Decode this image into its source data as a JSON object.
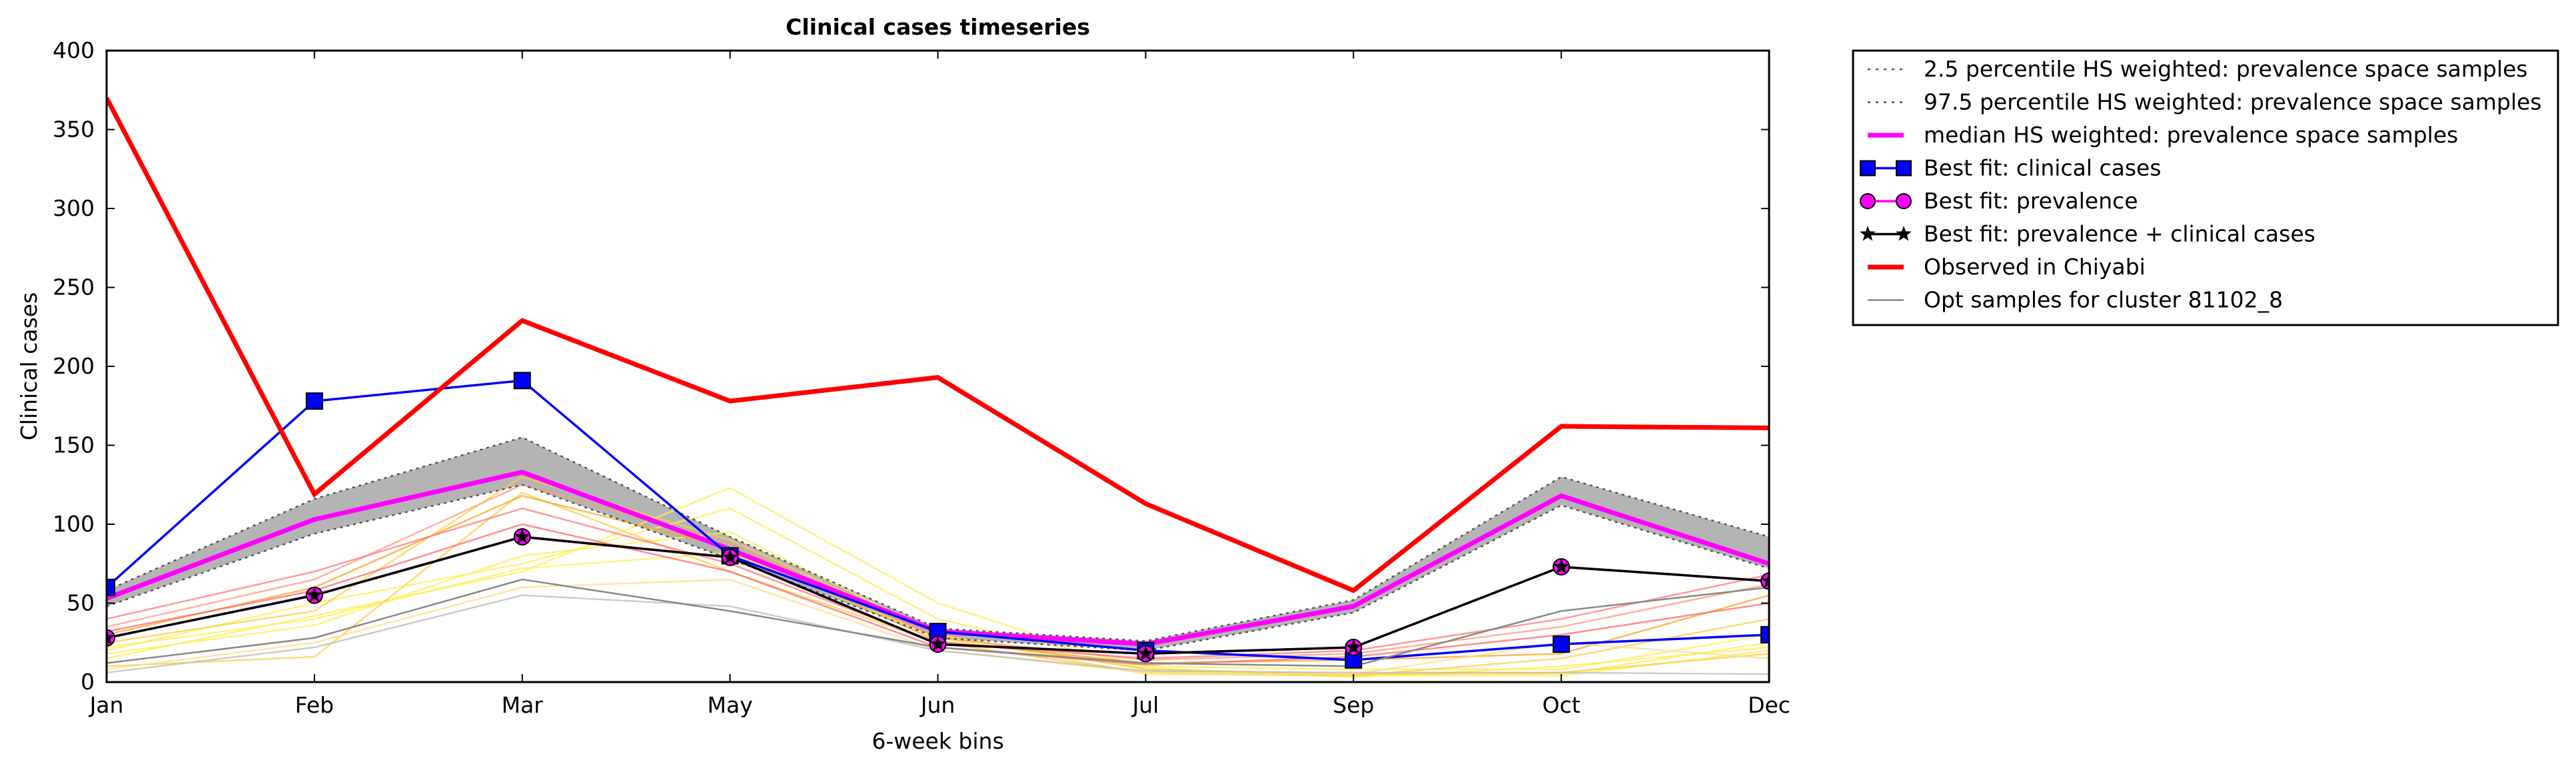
{
  "chart_data": {
    "type": "line",
    "title": "Clinical cases timeseries",
    "xlabel": "6-week bins",
    "ylabel": "Clinical cases",
    "categories": [
      "Jan",
      "Feb",
      "Mar",
      "May",
      "Jun",
      "Jul",
      "Sep",
      "Oct",
      "Dec"
    ],
    "ylim": [
      0,
      400
    ],
    "yticks": [
      "0",
      "50",
      "100",
      "150",
      "200",
      "250",
      "300",
      "350",
      "400"
    ],
    "grid": false,
    "legend_position": "outside-right-top",
    "band": {
      "lower": [
        48,
        94,
        125,
        78,
        28,
        20,
        44,
        112,
        72
      ],
      "upper": [
        58,
        116,
        155,
        92,
        34,
        26,
        52,
        130,
        92
      ],
      "color": "#b4b4b4"
    },
    "series": [
      {
        "name": "2.5 percentile HS weighted: prevalence space samples",
        "style": "dotted",
        "color": "#555555",
        "values": [
          48,
          94,
          125,
          78,
          28,
          20,
          44,
          112,
          72
        ]
      },
      {
        "name": "97.5 percentile HS weighted: prevalence space samples",
        "style": "dotted",
        "color": "#555555",
        "values": [
          58,
          116,
          155,
          92,
          34,
          26,
          52,
          130,
          92
        ]
      },
      {
        "name": "median HS weighted: prevalence space samples",
        "style": "thick",
        "color": "#ff00ff",
        "values": [
          53,
          103,
          133,
          84,
          32,
          24,
          48,
          118,
          75
        ]
      },
      {
        "name": "Best fit: clinical cases",
        "style": "square-marker",
        "color": "#0000ff",
        "values": [
          60,
          178,
          191,
          80,
          32,
          20,
          14,
          24,
          30
        ]
      },
      {
        "name": "Best fit: prevalence",
        "style": "circle-marker",
        "color": "#ff00ff",
        "values": [
          28,
          55,
          92,
          79,
          24,
          18,
          22,
          73,
          64
        ]
      },
      {
        "name": "Best fit: prevalence + clinical cases",
        "style": "star-marker",
        "color": "#000000",
        "values": [
          28,
          55,
          92,
          79,
          24,
          18,
          22,
          73,
          64
        ]
      },
      {
        "name": "Observed in Chiyabi",
        "style": "thick",
        "color": "#ff0000",
        "values": [
          370,
          119,
          229,
          178,
          193,
          113,
          58,
          162,
          161
        ]
      },
      {
        "name": "Opt samples for cluster 81102_8",
        "style": "thin",
        "color": "#888888",
        "values": [
          12,
          28,
          65,
          45,
          22,
          12,
          10,
          45,
          60
        ]
      }
    ],
    "samples": [
      {
        "color": "#ffee55",
        "values": [
          15,
          42,
          70,
          123,
          50,
          8,
          5,
          5,
          25
        ]
      },
      {
        "color": "#ffee55",
        "values": [
          20,
          50,
          75,
          110,
          40,
          10,
          8,
          8,
          30
        ]
      },
      {
        "color": "#ffee55",
        "values": [
          18,
          36,
          80,
          95,
          30,
          5,
          4,
          4,
          20
        ]
      },
      {
        "color": "#ffee55",
        "values": [
          22,
          40,
          72,
          82,
          28,
          9,
          3,
          10,
          22
        ]
      },
      {
        "color": "#ffcc44",
        "values": [
          10,
          16,
          120,
          70,
          25,
          6,
          4,
          15,
          40
        ]
      },
      {
        "color": "#ffcc44",
        "values": [
          25,
          45,
          130,
          90,
          30,
          8,
          5,
          6,
          18
        ]
      },
      {
        "color": "#f5a623",
        "values": [
          30,
          60,
          118,
          85,
          26,
          12,
          14,
          18,
          55
        ]
      },
      {
        "color": "#ff9977",
        "values": [
          35,
          65,
          125,
          88,
          28,
          14,
          18,
          35,
          62
        ]
      },
      {
        "color": "#ff7777",
        "values": [
          40,
          70,
          110,
          75,
          25,
          15,
          20,
          40,
          68
        ]
      },
      {
        "color": "#ff6666",
        "values": [
          32,
          58,
          100,
          70,
          22,
          11,
          16,
          30,
          50
        ]
      },
      {
        "color": "#ffdd88",
        "values": [
          8,
          25,
          60,
          65,
          20,
          6,
          5,
          25,
          15
        ]
      },
      {
        "color": "#bbbbbb",
        "values": [
          6,
          22,
          55,
          48,
          20,
          7,
          6,
          6,
          5
        ]
      }
    ]
  }
}
